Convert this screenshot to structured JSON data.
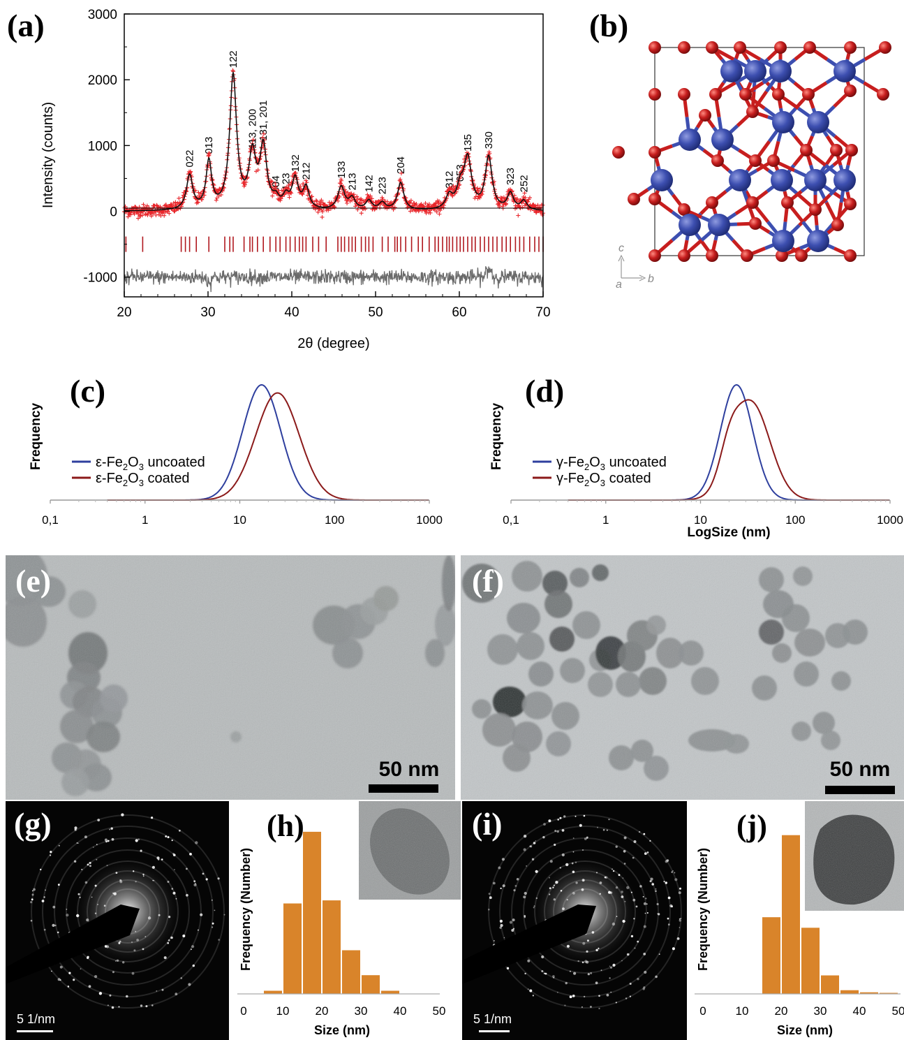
{
  "panel_labels": {
    "a": "(a)",
    "b": "(b)",
    "c": "(c)",
    "d": "(d)",
    "e": "(e)",
    "f": "(f)",
    "g": "(g)",
    "h": "(h)",
    "i": "(i)",
    "j": "(j)"
  },
  "colors": {
    "observed": "#e8262b",
    "fit": "#111111",
    "ticks": "#b0181e",
    "difference": "#6a6a6a",
    "fe": "#3d4fb0",
    "o": "#c71e1e",
    "uncoated": "#2e3f9e",
    "coated": "#8b1a1a",
    "hist": "#d9842a"
  },
  "scale_bars": {
    "e": "50 nm",
    "f": "50 nm",
    "g": "5 1/nm",
    "i": "5 1/nm"
  },
  "crystal_axes": {
    "vertical": "c",
    "horizontal": "b",
    "origin": "a"
  },
  "chart_data": [
    {
      "id": "a",
      "type": "scatter",
      "xlabel": "2θ (degree)",
      "ylabel": "Intensity (counts)",
      "xlim": [
        20,
        70
      ],
      "ylim": [
        -1300,
        3000
      ],
      "x_ticks": [
        20,
        30,
        40,
        50,
        60,
        70
      ],
      "y_ticks": [
        -1000,
        0,
        1000,
        2000,
        3000
      ],
      "series": [
        {
          "kind": "observed",
          "marker": "+"
        },
        {
          "kind": "calculated"
        },
        {
          "kind": "bragg_positions",
          "y": -500
        },
        {
          "kind": "difference",
          "offset": -1000
        }
      ],
      "peaks": [
        {
          "x": 27.8,
          "h": 520,
          "w": 0.45,
          "label": "022"
        },
        {
          "x": 30.1,
          "h": 720,
          "w": 0.4,
          "label": "013"
        },
        {
          "x": 33.0,
          "h": 2030,
          "w": 0.5,
          "label": "122"
        },
        {
          "x": 35.3,
          "h": 800,
          "w": 0.5,
          "label": "113, 200"
        },
        {
          "x": 36.6,
          "h": 920,
          "w": 0.5,
          "label": "131, 201"
        },
        {
          "x": 38.1,
          "h": 130,
          "w": 0.45,
          "label": "004"
        },
        {
          "x": 39.3,
          "h": 170,
          "w": 0.45,
          "label": "123"
        },
        {
          "x": 40.4,
          "h": 450,
          "w": 0.45,
          "label": "132"
        },
        {
          "x": 41.7,
          "h": 330,
          "w": 0.45,
          "label": "212"
        },
        {
          "x": 45.9,
          "h": 350,
          "w": 0.5,
          "label": "133"
        },
        {
          "x": 47.2,
          "h": 170,
          "w": 0.45,
          "label": "213"
        },
        {
          "x": 49.2,
          "h": 140,
          "w": 0.45,
          "label": "142"
        },
        {
          "x": 50.8,
          "h": 110,
          "w": 0.45,
          "label": "223"
        },
        {
          "x": 53.0,
          "h": 420,
          "w": 0.45,
          "label": "204"
        },
        {
          "x": 58.8,
          "h": 200,
          "w": 0.5,
          "label": "312"
        },
        {
          "x": 60.1,
          "h": 300,
          "w": 0.5,
          "label": "053"
        },
        {
          "x": 61.0,
          "h": 760,
          "w": 0.55,
          "label": "135"
        },
        {
          "x": 63.5,
          "h": 800,
          "w": 0.5,
          "label": "330"
        },
        {
          "x": 66.1,
          "h": 250,
          "w": 0.45,
          "label": "323"
        },
        {
          "x": 67.7,
          "h": 140,
          "w": 0.45,
          "label": "252"
        }
      ],
      "bragg_positions": [
        20.2,
        22.2,
        26.8,
        27.3,
        27.8,
        28.6,
        30.1,
        32.0,
        32.6,
        33.0,
        34.3,
        35.0,
        35.3,
        35.9,
        36.6,
        37.4,
        38.1,
        38.6,
        39.3,
        39.8,
        40.4,
        40.9,
        41.3,
        41.7,
        42.5,
        43.2,
        44.1,
        45.5,
        45.9,
        46.3,
        46.8,
        47.2,
        47.6,
        48.3,
        48.8,
        49.2,
        49.7,
        50.8,
        51.5,
        52.3,
        52.6,
        53.0,
        53.6,
        54.3,
        55.1,
        55.6,
        56.4,
        57.1,
        57.5,
        58.0,
        58.5,
        58.8,
        59.2,
        59.7,
        60.1,
        60.5,
        61.0,
        61.5,
        61.9,
        62.5,
        63.0,
        63.5,
        64.0,
        64.5,
        65.1,
        65.6,
        66.1,
        66.7,
        67.2,
        67.7,
        68.4,
        69.0,
        69.5,
        70.0
      ]
    },
    {
      "id": "c",
      "type": "line",
      "ylabel": "Frequency",
      "xlabel": "",
      "xscale": "log",
      "x_ticks": [
        "0,1",
        "1",
        "10",
        "100",
        "1000"
      ],
      "xlim": [
        0.1,
        1000
      ],
      "series": [
        {
          "name": "ε-Fe2O3 uncoated",
          "mode": 17,
          "sigma": 0.2,
          "peak": 1.0,
          "color": "uncoated"
        },
        {
          "name": "ε-Fe2O3 coated",
          "mode": 25,
          "sigma": 0.23,
          "peak": 0.93,
          "color": "coated"
        }
      ],
      "legend": [
        {
          "pre": "ε-Fe",
          "s1": "2",
          "mid": "O",
          "s2": "3",
          "post": " uncoated"
        },
        {
          "pre": "ε-Fe",
          "s1": "2",
          "mid": "O",
          "s2": "3",
          "post": " coated"
        }
      ]
    },
    {
      "id": "d",
      "type": "line",
      "ylabel": "Frequency",
      "xlabel": "LogSize (nm)",
      "xscale": "log",
      "x_ticks": [
        "0,1",
        "1",
        "10",
        "100",
        "1000"
      ],
      "xlim": [
        0.1,
        1000
      ],
      "series": [
        {
          "name": "γ-Fe2O3 uncoated",
          "mode": 24,
          "sigma": 0.17,
          "peak": 1.0,
          "color": "uncoated"
        },
        {
          "name": "γ-Fe2O3 coated",
          "mode": 34,
          "sigma": 0.2,
          "peak": 0.85,
          "shoulder": {
            "mode": 20,
            "sigma": 0.1,
            "peak": 0.22
          },
          "color": "coated"
        }
      ],
      "legend": [
        {
          "pre": "γ-Fe",
          "s1": "2",
          "mid": "O",
          "s2": "3",
          "post": " uncoated"
        },
        {
          "pre": "γ-Fe",
          "s1": "2",
          "mid": "O",
          "s2": "3",
          "post": " coated"
        }
      ]
    },
    {
      "id": "h",
      "type": "bar",
      "xlabel": "Size (nm)",
      "ylabel": "Frequency (Number)",
      "x_ticks": [
        0,
        10,
        20,
        30,
        40,
        50
      ],
      "xlim": [
        0,
        50
      ],
      "bin_width": 5,
      "bin_centers": [
        7.5,
        12.5,
        17.5,
        22.5,
        27.5,
        32.5,
        37.5,
        42.5
      ],
      "values": [
        0.5,
        14.5,
        26,
        15,
        7,
        3,
        0.5,
        0
      ],
      "ylim": [
        0,
        28
      ]
    },
    {
      "id": "j",
      "type": "bar",
      "xlabel": "Size (nm)",
      "ylabel": "Frequency (Number)",
      "x_ticks": [
        0,
        10,
        20,
        30,
        40,
        50
      ],
      "xlim": [
        0,
        50
      ],
      "bin_width": 5,
      "bin_centers": [
        12.5,
        17.5,
        22.5,
        27.5,
        32.5,
        37.5,
        42.5,
        47.5
      ],
      "values": [
        0,
        14.5,
        30,
        12.5,
        3.5,
        0.7,
        0.3,
        0.2
      ],
      "ylim": [
        0,
        33
      ]
    }
  ]
}
